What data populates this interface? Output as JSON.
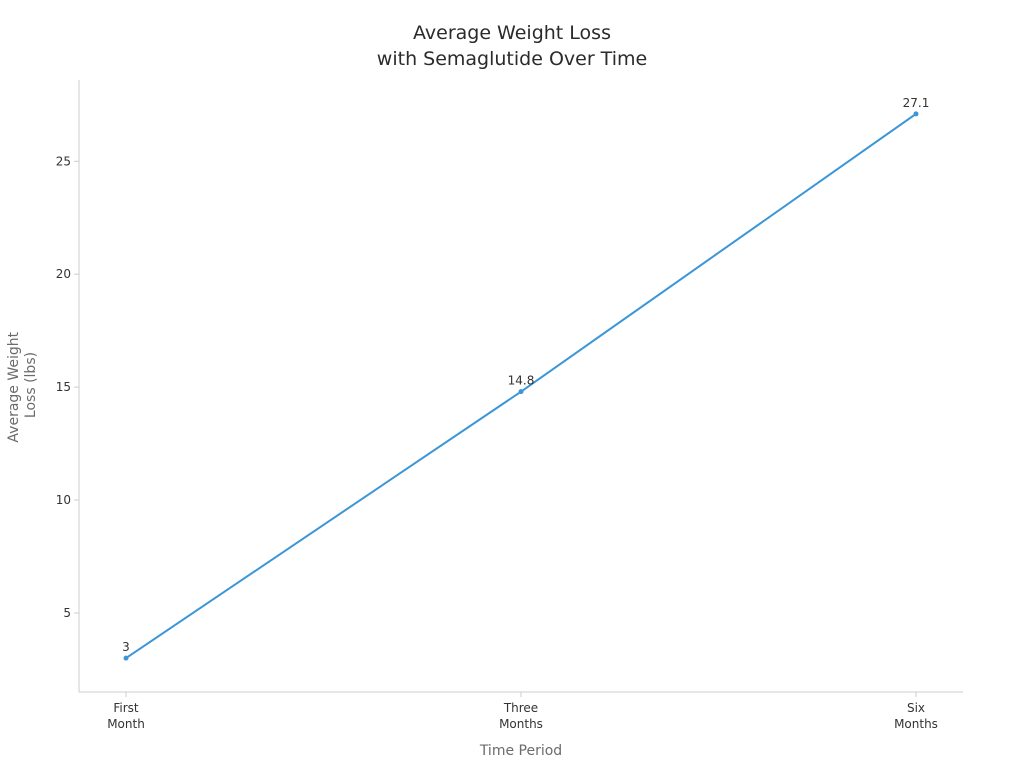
{
  "chart_data": {
    "type": "line",
    "title_lines": [
      "Average Weight Loss",
      "with Semaglutide Over Time"
    ],
    "categories": [
      [
        "First",
        "Month"
      ],
      [
        "Three",
        "Months"
      ],
      [
        "Six",
        "Months"
      ]
    ],
    "series": [
      {
        "values": [
          3,
          14.8,
          27.1
        ],
        "data_labels": [
          "3",
          "14.8",
          "27.1"
        ],
        "color": "#3b96d8"
      }
    ],
    "xlabel": "Time Period",
    "ylabel_lines": [
      "Average Weight",
      "Loss (lbs)"
    ],
    "yticks": [
      5,
      10,
      15,
      20,
      25
    ],
    "ylim": [
      1.5,
      28.6
    ],
    "grid": false,
    "legend": "none",
    "axis_color": "#cccccc"
  }
}
